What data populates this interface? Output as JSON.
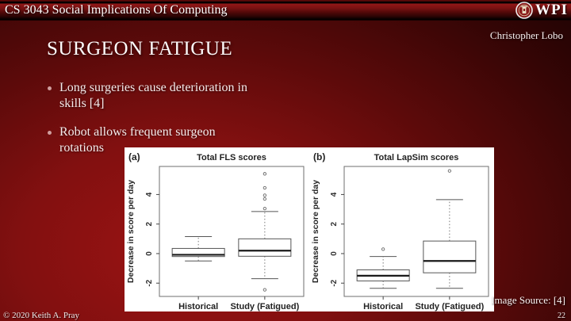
{
  "header": {
    "course_title": "CS 3043 Social Implications Of Computing",
    "logo_text": "WPI",
    "author": "Christopher Lobo"
  },
  "slide": {
    "title": "SURGEON FATIGUE",
    "bullets": [
      "Long surgeries cause deterioration in skills [4]",
      "Robot allows frequent surgeon rotations"
    ],
    "image_source_label": "Image Source: [4]"
  },
  "footer": {
    "copyright": "© 2020 Keith A. Pray",
    "page_number": "22"
  },
  "colors": {
    "background_center": "#9c1313",
    "background_edge": "#1e0303",
    "header_accent": "#911717",
    "wpi_seal_red": "#8a1a1a",
    "chart_ink": "#333333"
  },
  "chart_data": [
    {
      "type": "box",
      "panel_label": "(a)",
      "title": "Total FLS scores",
      "ylabel": "Decrease in score per day",
      "categories": [
        "Historical",
        "Study (Fatigued)"
      ],
      "ylim": [
        -2.9,
        5.9
      ],
      "yticks": [
        -2,
        0,
        2,
        4
      ],
      "grid": false,
      "boxes": [
        {
          "category": "Historical",
          "whisker_low": -0.5,
          "q1": -0.2,
          "median": -0.08,
          "q3": 0.35,
          "whisker_high": 1.15,
          "outliers": []
        },
        {
          "category": "Study (Fatigued)",
          "whisker_low": -1.7,
          "q1": -0.18,
          "median": 0.2,
          "q3": 1.0,
          "whisker_high": 2.85,
          "outliers": [
            5.4,
            4.45,
            3.95,
            3.7,
            3.05,
            -2.45
          ]
        }
      ]
    },
    {
      "type": "box",
      "panel_label": "(b)",
      "title": "Total LapSim scores",
      "ylabel": "Decrease in score per day",
      "categories": [
        "Historical",
        "Study (Fatigued)"
      ],
      "ylim": [
        -2.9,
        5.9
      ],
      "yticks": [
        -2,
        0,
        2,
        4
      ],
      "grid": false,
      "boxes": [
        {
          "category": "Historical",
          "whisker_low": -2.35,
          "q1": -1.85,
          "median": -1.5,
          "q3": -1.1,
          "whisker_high": -0.2,
          "outliers": [
            0.3
          ]
        },
        {
          "category": "Study (Fatigued)",
          "whisker_low": -2.35,
          "q1": -1.3,
          "median": -0.5,
          "q3": 0.85,
          "whisker_high": 3.65,
          "outliers": [
            5.6
          ]
        }
      ]
    }
  ]
}
